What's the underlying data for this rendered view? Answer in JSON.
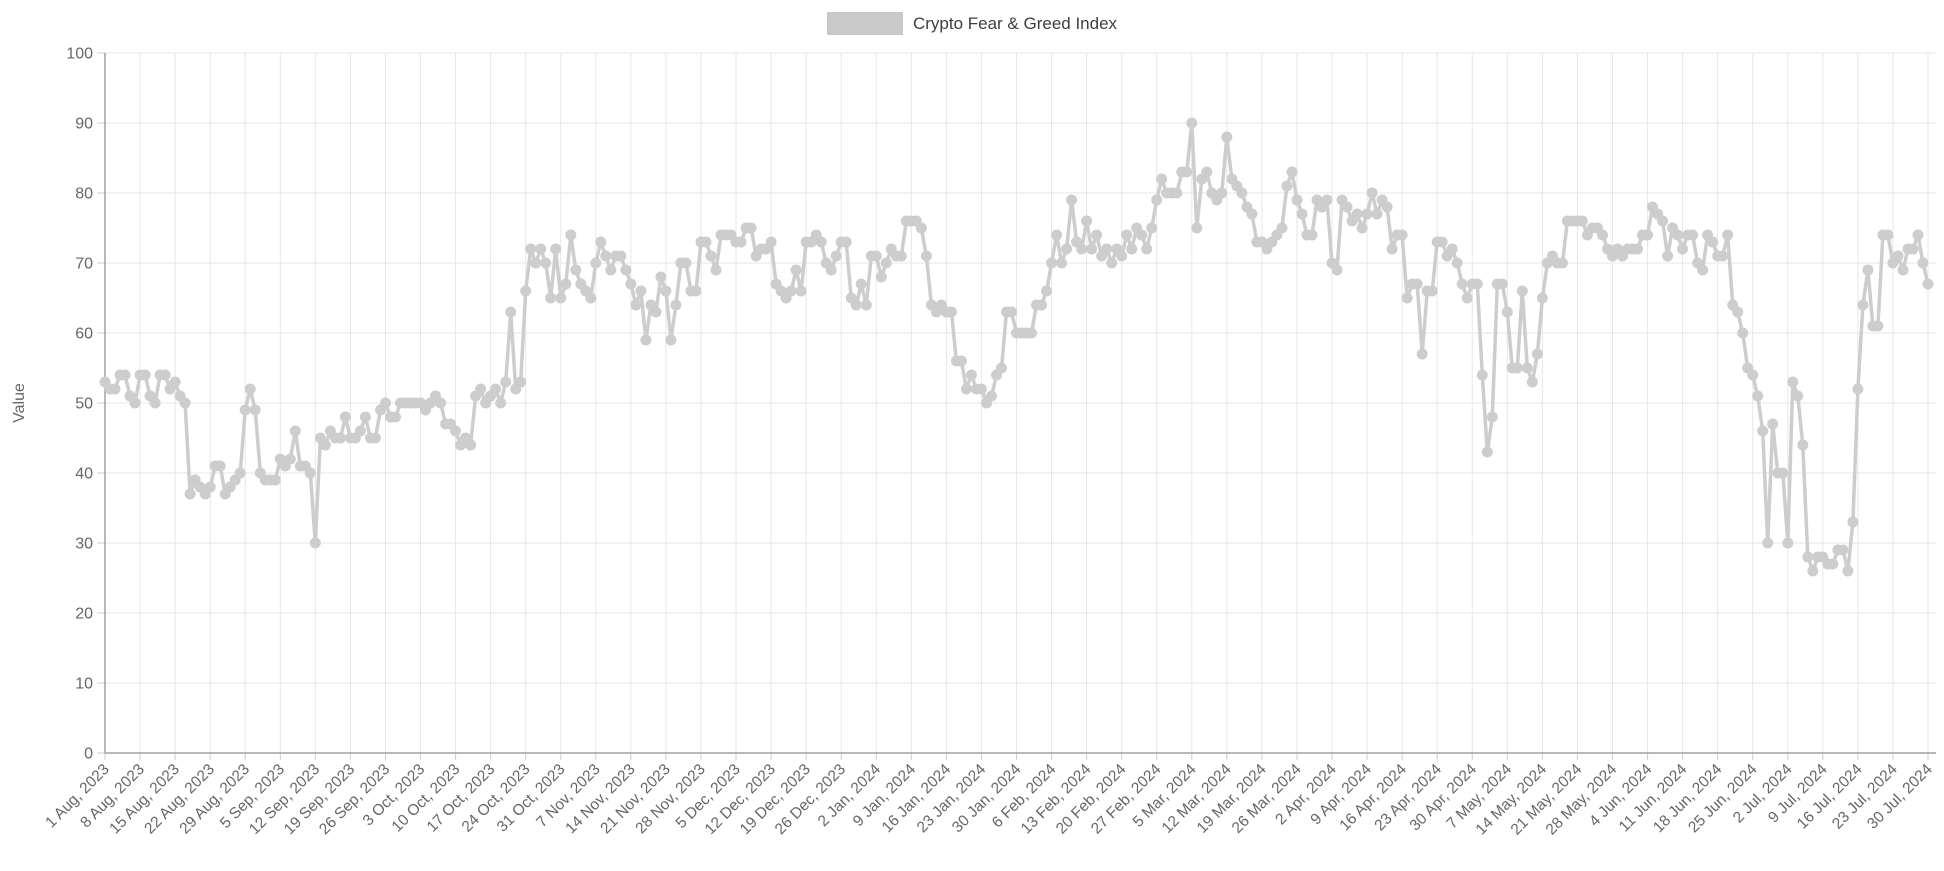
{
  "legend": {
    "label": "Crypto Fear & Greed Index",
    "swatch_color": "#c9c9c9"
  },
  "colors": {
    "series": "#cdcdcd",
    "grid": "#e7e7e7",
    "axis": "#a0a0a0",
    "tick": "#cccccc",
    "tick_text": "#666666",
    "legend_text": "#3e3e3e",
    "background": "#ffffff"
  },
  "chart_data": {
    "type": "line",
    "title": "Crypto Fear & Greed Index",
    "xlabel": "",
    "ylabel": "Value",
    "ylim": [
      0,
      100
    ],
    "y_ticks": [
      0,
      10,
      20,
      30,
      40,
      50,
      60,
      70,
      80,
      90,
      100
    ],
    "grid": true,
    "legend_position": "top-center",
    "marker": "circle",
    "x_start_label": "1 Aug, 2023",
    "x_end_label": "30 Jul, 2024",
    "x_tick_interval_days": 7,
    "x_tick_labels": [
      "1 Aug, 2023",
      "8 Aug, 2023",
      "15 Aug, 2023",
      "22 Aug, 2023",
      "29 Aug, 2023",
      "5 Sep, 2023",
      "12 Sep, 2023",
      "19 Sep, 2023",
      "26 Sep, 2023",
      "3 Oct, 2023",
      "10 Oct, 2023",
      "17 Oct, 2023",
      "24 Oct, 2023",
      "31 Oct, 2023",
      "7 Nov, 2023",
      "14 Nov, 2023",
      "21 Nov, 2023",
      "28 Nov, 2023",
      "5 Dec, 2023",
      "12 Dec, 2023",
      "19 Dec, 2023",
      "26 Dec, 2023",
      "2 Jan, 2024",
      "9 Jan, 2024",
      "16 Jan, 2024",
      "23 Jan, 2024",
      "30 Jan, 2024",
      "6 Feb, 2024",
      "13 Feb, 2024",
      "20 Feb, 2024",
      "27 Feb, 2024",
      "5 Mar, 2024",
      "12 Mar, 2024",
      "19 Mar, 2024",
      "26 Mar, 2024",
      "2 Apr, 2024",
      "9 Apr, 2024",
      "16 Apr, 2024",
      "23 Apr, 2024",
      "30 Apr, 2024",
      "7 May, 2024",
      "14 May, 2024",
      "21 May, 2024",
      "28 May, 2024",
      "4 Jun, 2024",
      "11 Jun, 2024",
      "18 Jun, 2024",
      "25 Jun, 2024",
      "2 Jul, 2024",
      "9 Jul, 2024",
      "16 Jul, 2024",
      "23 Jul, 2024",
      "30 Jul, 2024"
    ],
    "series": [
      {
        "name": "Crypto Fear & Greed Index",
        "color": "#cdcdcd",
        "cadence": "daily",
        "monthly_values": [
          {
            "month": "Aug 2023",
            "values": [
              53,
              52,
              52,
              54,
              54,
              51,
              50,
              54,
              54,
              51,
              50,
              54,
              54,
              52,
              53,
              51,
              50,
              37,
              39,
              38,
              37,
              38,
              41,
              41,
              37,
              38,
              39,
              40,
              49,
              52,
              49
            ]
          },
          {
            "month": "Sep 2023",
            "values": [
              40,
              39,
              39,
              39,
              42,
              41,
              42,
              46,
              41,
              41,
              40,
              30,
              45,
              44,
              46,
              45,
              45,
              48,
              45,
              45,
              46,
              48,
              45,
              45,
              49,
              50,
              48,
              48,
              50,
              50
            ]
          },
          {
            "month": "Oct 2023",
            "values": [
              50,
              50,
              50,
              49,
              50,
              51,
              50,
              47,
              47,
              46,
              44,
              45,
              44,
              51,
              52,
              50,
              51,
              52,
              50,
              53,
              63,
              52,
              53,
              66,
              72,
              70,
              72,
              70,
              65,
              72,
              65
            ]
          },
          {
            "month": "Nov 2023",
            "values": [
              67,
              74,
              69,
              67,
              66,
              65,
              70,
              73,
              71,
              69,
              71,
              71,
              69,
              67,
              64,
              66,
              59,
              64,
              63,
              68,
              66,
              59,
              64,
              70,
              70,
              66,
              66,
              73,
              73,
              71
            ]
          },
          {
            "month": "Dec 2023",
            "values": [
              69,
              74,
              74,
              74,
              73,
              73,
              75,
              75,
              71,
              72,
              72,
              73,
              67,
              66,
              65,
              66,
              69,
              66,
              73,
              73,
              74,
              73,
              70,
              69,
              71,
              73,
              73,
              65,
              64,
              67,
              64
            ]
          },
          {
            "month": "Jan 2024",
            "values": [
              71,
              71,
              68,
              70,
              72,
              71,
              71,
              76,
              76,
              76,
              75,
              71,
              64,
              63,
              64,
              63,
              63,
              56,
              56,
              52,
              54,
              52,
              52,
              50,
              51,
              54,
              55,
              63,
              63,
              60,
              60
            ]
          },
          {
            "month": "Feb 2024",
            "values": [
              60,
              60,
              64,
              64,
              66,
              70,
              74,
              70,
              72,
              79,
              73,
              72,
              76,
              72,
              74,
              71,
              72,
              70,
              72,
              71,
              74,
              72,
              75,
              74,
              72,
              75,
              79,
              82,
              80
            ]
          },
          {
            "month": "Mar 2024",
            "values": [
              80,
              80,
              83,
              83,
              90,
              75,
              82,
              83,
              80,
              79,
              80,
              88,
              82,
              81,
              80,
              78,
              77,
              73,
              73,
              72,
              73,
              74,
              75,
              81,
              83,
              79,
              77,
              74,
              74,
              79,
              78
            ]
          },
          {
            "month": "Apr 2024",
            "values": [
              79,
              70,
              69,
              79,
              78,
              76,
              77,
              75,
              77,
              80,
              77,
              79,
              78,
              72,
              74,
              74,
              65,
              67,
              67,
              57,
              66,
              66,
              73,
              73,
              71,
              72,
              70,
              67,
              65,
              67
            ]
          },
          {
            "month": "May 2024",
            "values": [
              67,
              54,
              43,
              48,
              67,
              67,
              63,
              55,
              55,
              66,
              55,
              53,
              57,
              65,
              70,
              71,
              70,
              70,
              76,
              76,
              76,
              76,
              74,
              75,
              75,
              74,
              72,
              71,
              72,
              71,
              72
            ]
          },
          {
            "month": "Jun 2024",
            "values": [
              72,
              72,
              74,
              74,
              78,
              77,
              76,
              71,
              75,
              74,
              72,
              74,
              74,
              70,
              69,
              74,
              73,
              71,
              71,
              74,
              64,
              63,
              60,
              55,
              54,
              51,
              46,
              30,
              47,
              40
            ]
          },
          {
            "month": "Jul 2024",
            "values": [
              40,
              30,
              53,
              51,
              44,
              28,
              26,
              28,
              28,
              27,
              27,
              29,
              29,
              26,
              33,
              52,
              64,
              69,
              61,
              61,
              74,
              74,
              70,
              71,
              69,
              72,
              72,
              74,
              70,
              67
            ]
          }
        ]
      }
    ]
  }
}
